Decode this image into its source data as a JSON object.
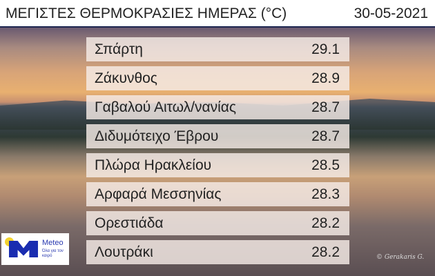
{
  "header": {
    "title": "ΜΕΓΙΣΤΕΣ ΘΕΡΜΟΚΡΑΣΙΕΣ ΗΜΕΡΑΣ (°C)",
    "date": "30-05-2021"
  },
  "rows": [
    {
      "station": "Σπάρτη",
      "value": "29.1"
    },
    {
      "station": "Ζάκυνθος",
      "value": "28.9"
    },
    {
      "station": "Γαβαλού Αιτωλ/νανίας",
      "value": "28.7"
    },
    {
      "station": "Διδυμότειχο Έβρου",
      "value": "28.7"
    },
    {
      "station": "Πλώρα Ηρακλείου",
      "value": "28.5"
    },
    {
      "station": "Αρφαρά Μεσσηνίας",
      "value": "28.3"
    },
    {
      "station": "Ορεστιάδα",
      "value": "28.2"
    },
    {
      "station": "Λουτράκι",
      "value": "28.2"
    }
  ],
  "logo": {
    "brand": "Meteo",
    "slogan": "Όλα για τον καιρό"
  },
  "credit": "© Gerakaris G."
}
